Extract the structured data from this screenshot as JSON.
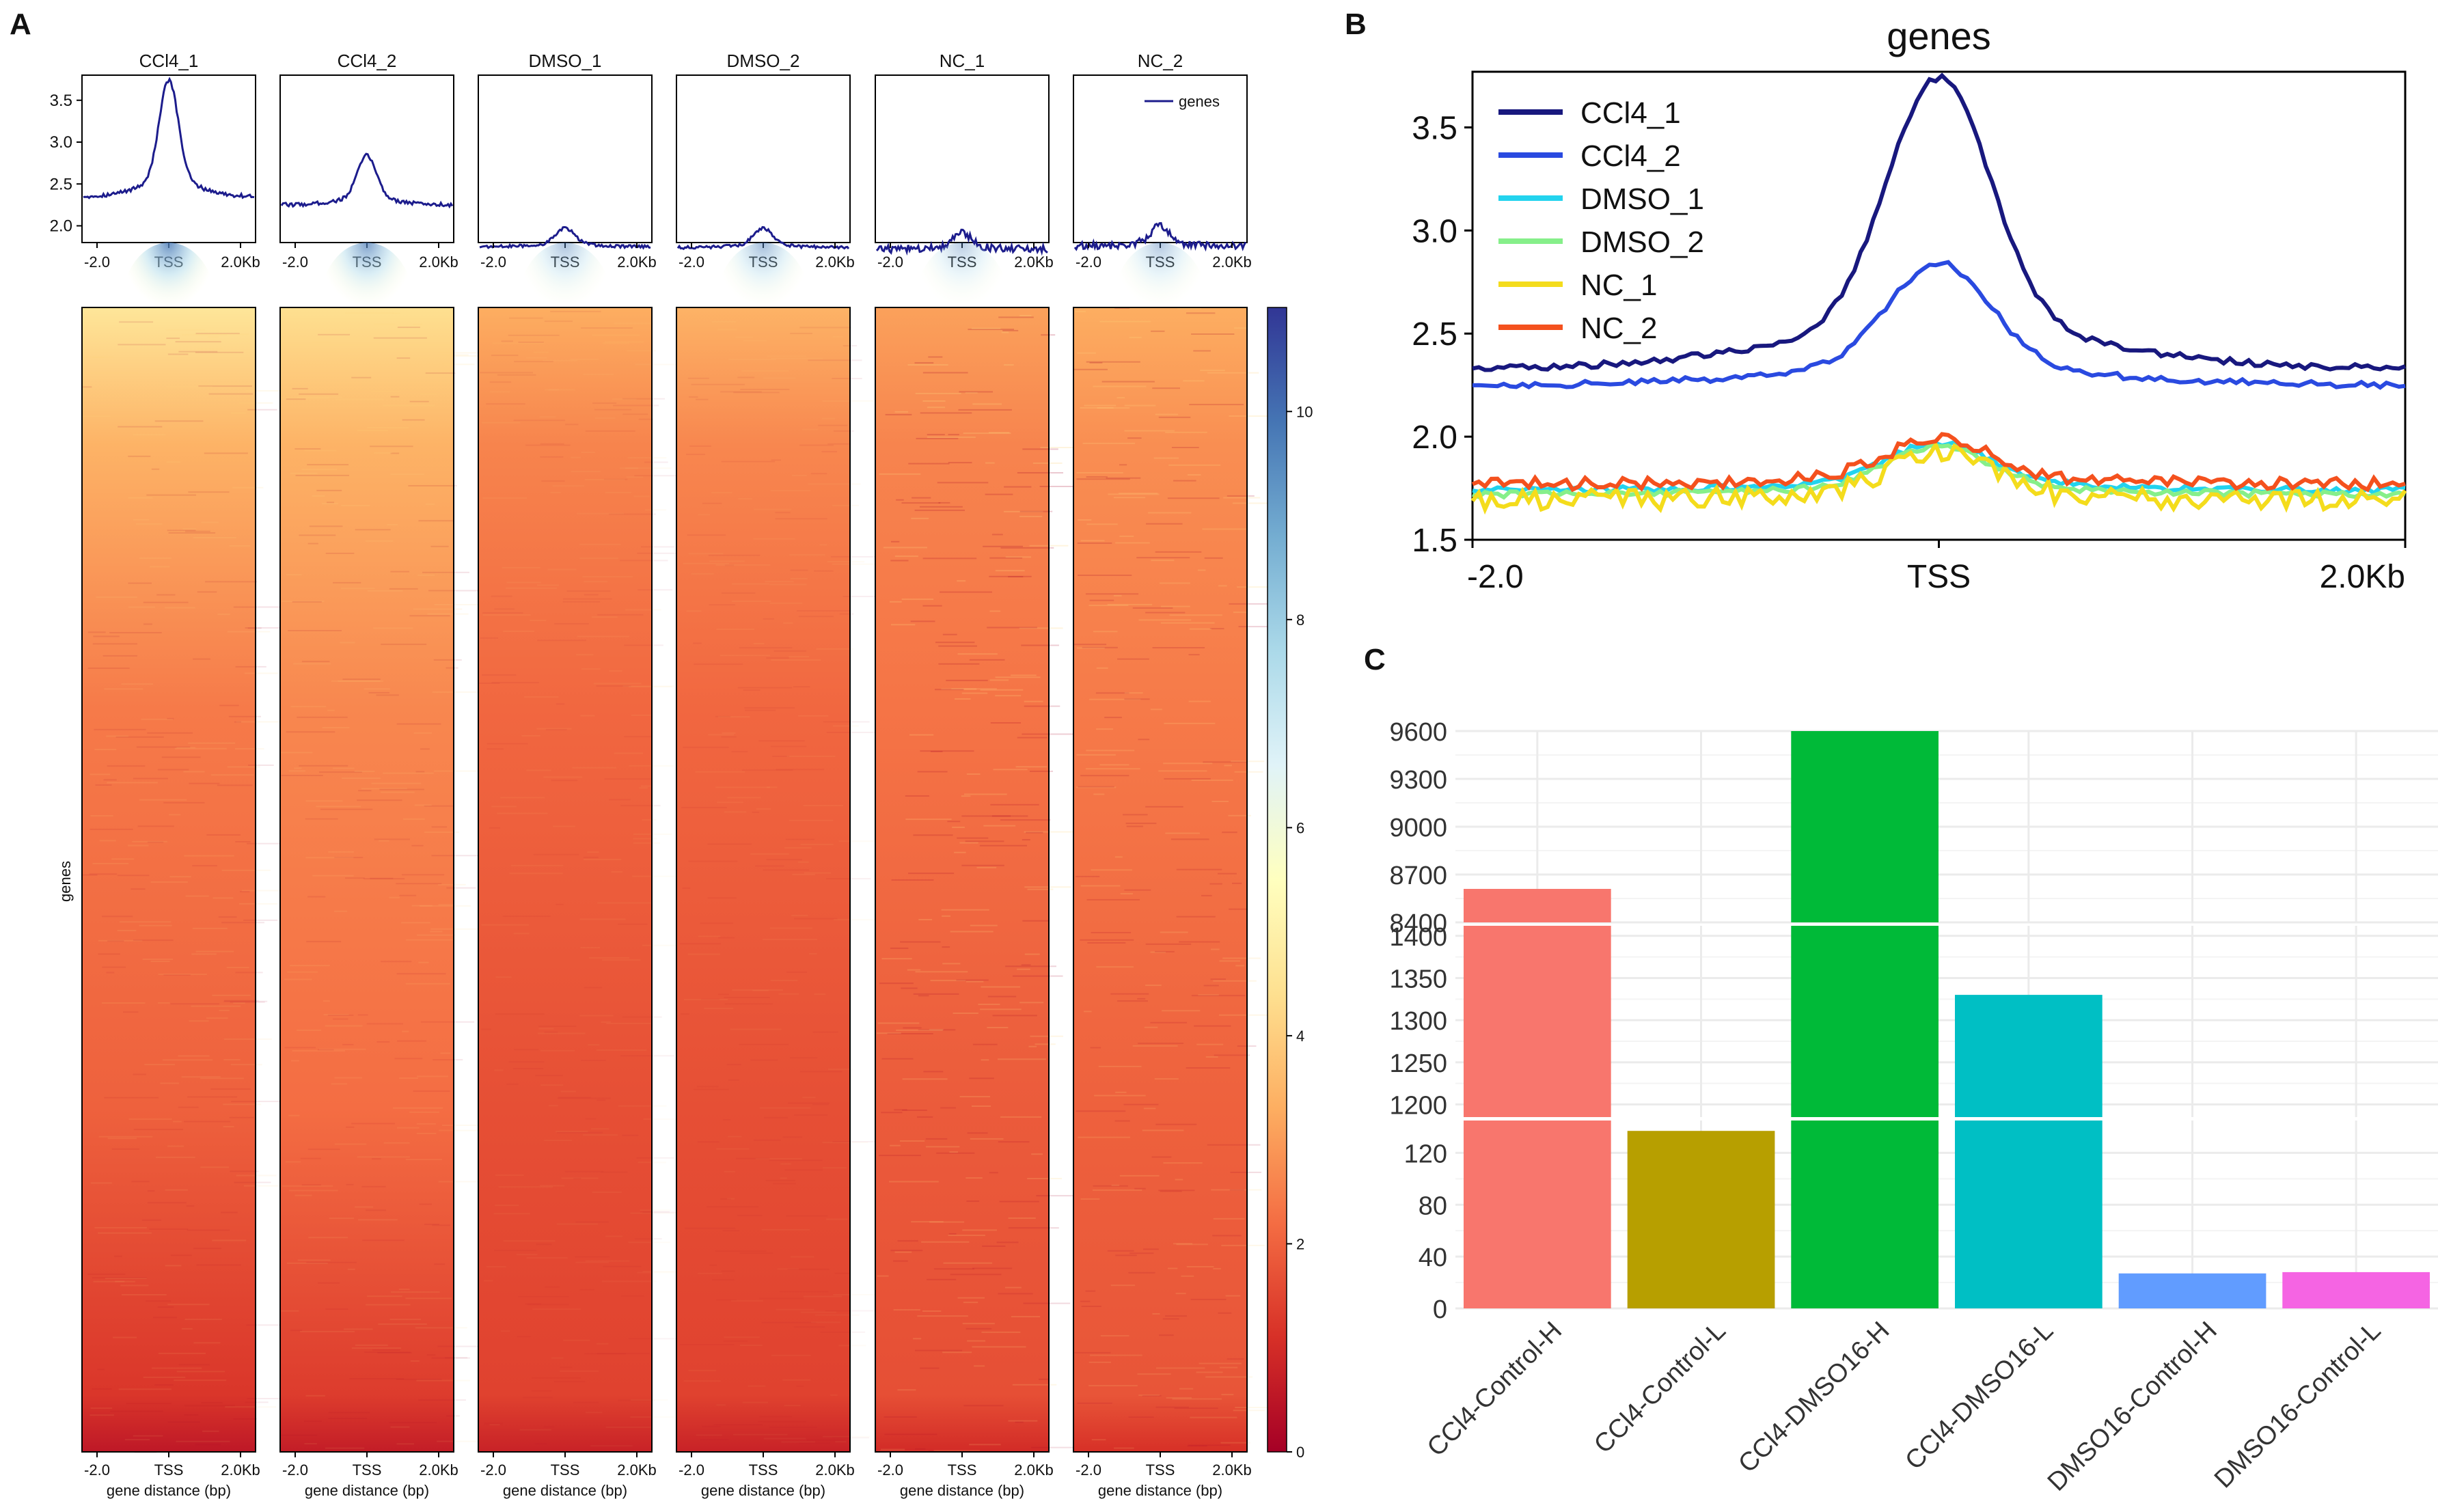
{
  "figure": {
    "panel_labels": [
      "A",
      "B",
      "C"
    ]
  },
  "chart_data": [
    {
      "panel": "A",
      "type": "line",
      "subplot_titles": [
        "CCl4_1",
        "CCl4_2",
        "DMSO_1",
        "DMSO_2",
        "NC_1",
        "NC_2"
      ],
      "legend": [
        "genes"
      ],
      "legend_position": "top-right",
      "x_ticks": [
        "-2.0",
        "TSS",
        "2.0Kb"
      ],
      "y_ticks": [
        "2.0",
        "2.5",
        "3.0",
        "3.5"
      ],
      "ylim": [
        1.8,
        3.8
      ],
      "line_color": "#1c1c8c",
      "profiles": [
        {
          "name": "CCl4_1",
          "base": 2.35,
          "peak": 3.74
        },
        {
          "name": "CCl4_2",
          "base": 2.25,
          "peak": 2.84
        },
        {
          "name": "DMSO_1",
          "base": 1.75,
          "peak": 1.97
        },
        {
          "name": "DMSO_2",
          "base": 1.74,
          "peak": 1.97
        },
        {
          "name": "NC_1",
          "base": 1.72,
          "peak": 1.92
        },
        {
          "name": "NC_2",
          "base": 1.76,
          "peak": 2.0
        }
      ]
    },
    {
      "panel": "A",
      "type": "heatmap",
      "ylabel": "genes",
      "xlabel": "gene distance (bp)",
      "x_ticks": [
        "-2.0",
        "TSS",
        "2.0Kb"
      ],
      "colorbar_ticks": [
        "0",
        "2",
        "4",
        "6",
        "8",
        "10"
      ],
      "colorbar_range": [
        0,
        11
      ],
      "colorscale": [
        "#a50026",
        "#d73027",
        "#f46d43",
        "#fdae61",
        "#fee090",
        "#ffffbf",
        "#e0f3f8",
        "#abd9e9",
        "#74add1",
        "#4575b4",
        "#313695"
      ],
      "panels": [
        "CCl4_1",
        "CCl4_2",
        "DMSO_1",
        "DMSO_2",
        "NC_1",
        "NC_2"
      ]
    },
    {
      "panel": "B",
      "type": "line",
      "title": "genes",
      "x_ticks": [
        "-2.0",
        "TSS",
        "2.0Kb"
      ],
      "y_ticks": [
        "1.5",
        "2.0",
        "2.5",
        "3.0",
        "3.5"
      ],
      "ylim": [
        1.5,
        3.77
      ],
      "legend_position": "top-left",
      "series": [
        {
          "name": "CCl4_1",
          "color": "#18187e",
          "base": 2.33,
          "peak": 3.74
        },
        {
          "name": "CCl4_2",
          "color": "#2a4ae0",
          "base": 2.25,
          "peak": 2.84
        },
        {
          "name": "DMSO_1",
          "color": "#22d3ee",
          "base": 1.74,
          "peak": 1.97
        },
        {
          "name": "DMSO_2",
          "color": "#86ef8a",
          "base": 1.72,
          "peak": 1.95
        },
        {
          "name": "NC_1",
          "color": "#f4dc1c",
          "base": 1.69,
          "peak": 1.92
        },
        {
          "name": "NC_2",
          "color": "#f4511e",
          "base": 1.77,
          "peak": 2.0
        }
      ]
    },
    {
      "panel": "C",
      "type": "bar",
      "categories": [
        "CCl4-Control-H",
        "CCl4-Control-L",
        "CCl4-DMSO16-H",
        "CCl4-DMSO16-L",
        "DMSO16-Control-H",
        "DMSO16-Control-L"
      ],
      "values": [
        8610,
        137,
        9620,
        1330,
        27,
        28
      ],
      "colors": [
        "#f8766d",
        "#b79f00",
        "#00ba38",
        "#00bfc4",
        "#619cff",
        "#f564e3"
      ],
      "y_segments": [
        {
          "range": [
            0,
            145
          ],
          "ticks": [
            "0",
            "40",
            "80",
            "120"
          ],
          "tick_values": [
            0,
            40,
            80,
            120
          ]
        },
        {
          "range": [
            1185,
            1412
          ],
          "ticks": [
            "1200",
            "1250",
            "1300",
            "1350",
            "1400"
          ],
          "tick_values": [
            1200,
            1250,
            1300,
            1350,
            1400
          ]
        },
        {
          "range": [
            8400,
            9600
          ],
          "ticks": [
            "8400",
            "8700",
            "9000",
            "9300",
            "9600"
          ],
          "tick_values": [
            8400,
            8700,
            9000,
            9300,
            9600
          ]
        }
      ]
    }
  ]
}
